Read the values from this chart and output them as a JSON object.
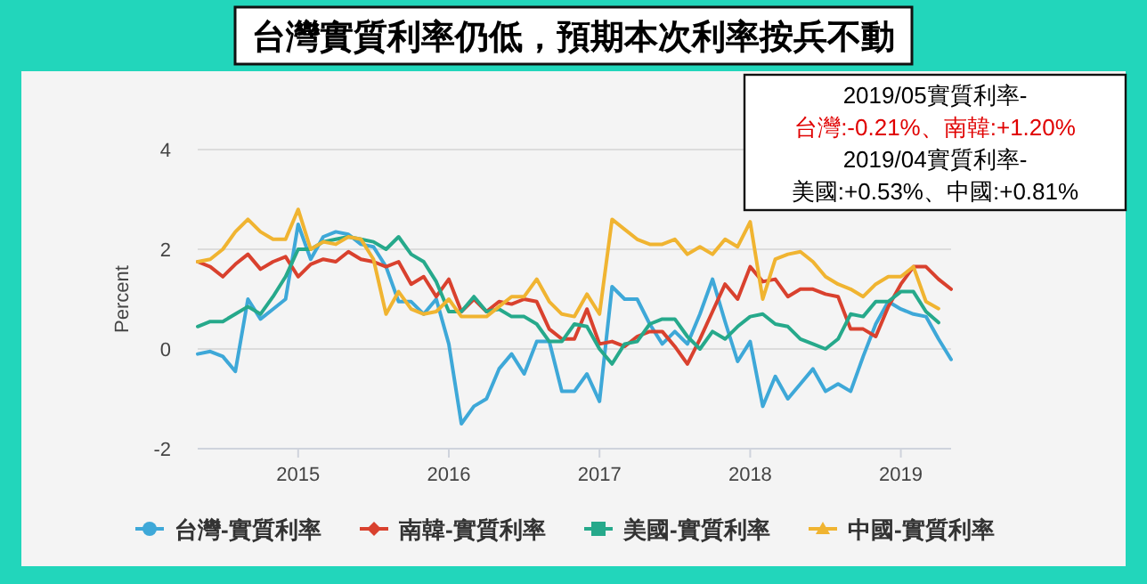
{
  "chart_data": {
    "type": "line",
    "title": "台灣實質利率仍低，預期本次利率按兵不動",
    "ylabel": "Percent",
    "annotations": [
      "2019/05實質利率-",
      "台灣:-0.21%、南韓:+1.20%",
      "2019/04實質利率-",
      "美國:+0.53%、中國:+0.81%"
    ],
    "x": [
      "2014-05",
      "2014-06",
      "2014-07",
      "2014-08",
      "2014-09",
      "2014-10",
      "2014-11",
      "2014-12",
      "2015-01",
      "2015-02",
      "2015-03",
      "2015-04",
      "2015-05",
      "2015-06",
      "2015-07",
      "2015-08",
      "2015-09",
      "2015-10",
      "2015-11",
      "2015-12",
      "2016-01",
      "2016-02",
      "2016-03",
      "2016-04",
      "2016-05",
      "2016-06",
      "2016-07",
      "2016-08",
      "2016-09",
      "2016-10",
      "2016-11",
      "2016-12",
      "2017-01",
      "2017-02",
      "2017-03",
      "2017-04",
      "2017-05",
      "2017-06",
      "2017-07",
      "2017-08",
      "2017-09",
      "2017-10",
      "2017-11",
      "2017-12",
      "2018-01",
      "2018-02",
      "2018-03",
      "2018-04",
      "2018-05",
      "2018-06",
      "2018-07",
      "2018-08",
      "2018-09",
      "2018-10",
      "2018-11",
      "2018-12",
      "2019-01",
      "2019-02",
      "2019-03",
      "2019-04",
      "2019-05"
    ],
    "series": [
      {
        "name": "台灣-實質利率",
        "color": "#3ea8d8",
        "values": [
          -0.1,
          -0.05,
          -0.15,
          -0.45,
          1.0,
          0.6,
          0.8,
          1.0,
          2.5,
          1.8,
          2.25,
          2.35,
          2.3,
          2.1,
          2.05,
          1.65,
          0.95,
          0.95,
          0.7,
          1.0,
          0.1,
          -1.5,
          -1.15,
          -1.0,
          -0.4,
          -0.1,
          -0.5,
          0.15,
          0.15,
          -0.85,
          -0.85,
          -0.5,
          -1.05,
          1.25,
          1.0,
          1.0,
          0.5,
          0.1,
          0.35,
          0.1,
          0.7,
          1.4,
          0.55,
          -0.25,
          0.15,
          -1.15,
          -0.55,
          -1.0,
          -0.7,
          -0.4,
          -0.85,
          -0.7,
          -0.85,
          -0.15,
          0.5,
          0.95,
          0.8,
          0.7,
          0.65,
          0.2,
          -0.21
        ]
      },
      {
        "name": "南韓-實質利率",
        "color": "#d9412e",
        "values": [
          1.75,
          1.65,
          1.45,
          1.7,
          1.9,
          1.6,
          1.75,
          1.85,
          1.45,
          1.7,
          1.8,
          1.75,
          1.95,
          1.8,
          1.75,
          1.65,
          1.75,
          1.3,
          1.45,
          1.05,
          1.4,
          0.75,
          1.0,
          0.75,
          0.95,
          0.9,
          1.0,
          0.95,
          0.4,
          0.2,
          0.2,
          0.8,
          0.1,
          0.15,
          0.05,
          0.25,
          0.35,
          0.35,
          0.05,
          -0.3,
          0.2,
          0.75,
          1.3,
          1.0,
          1.65,
          1.35,
          1.4,
          1.05,
          1.2,
          1.2,
          1.1,
          1.05,
          0.4,
          0.4,
          0.25,
          0.85,
          1.3,
          1.65,
          1.65,
          1.4,
          1.2
        ]
      },
      {
        "name": "美國-實質利率",
        "color": "#26a98b",
        "values": [
          0.45,
          0.55,
          0.55,
          0.7,
          0.85,
          0.7,
          1.05,
          1.45,
          2.0,
          2.0,
          2.15,
          2.2,
          2.25,
          2.2,
          2.15,
          2.0,
          2.25,
          1.9,
          1.75,
          1.35,
          0.75,
          0.75,
          1.05,
          0.75,
          0.8,
          0.65,
          0.65,
          0.5,
          0.15,
          0.15,
          0.5,
          0.45,
          0.0,
          -0.3,
          0.1,
          0.15,
          0.5,
          0.6,
          0.6,
          0.25,
          0.0,
          0.35,
          0.2,
          0.45,
          0.65,
          0.7,
          0.5,
          0.45,
          0.2,
          0.1,
          0.0,
          0.2,
          0.7,
          0.65,
          0.95,
          0.95,
          1.15,
          1.15,
          0.75,
          0.53,
          null
        ]
      },
      {
        "name": "中國-實質利率",
        "color": "#f0b431",
        "values": [
          1.75,
          1.8,
          2.0,
          2.35,
          2.6,
          2.35,
          2.2,
          2.2,
          2.8,
          2.0,
          2.15,
          2.1,
          2.25,
          2.2,
          1.8,
          0.7,
          1.15,
          0.8,
          0.7,
          0.75,
          1.0,
          0.65,
          0.65,
          0.65,
          0.85,
          1.05,
          1.05,
          1.4,
          0.95,
          0.7,
          0.65,
          1.1,
          0.7,
          2.6,
          2.4,
          2.2,
          2.1,
          2.1,
          2.2,
          1.9,
          2.05,
          1.9,
          2.2,
          2.05,
          2.55,
          1.0,
          1.8,
          1.9,
          1.95,
          1.75,
          1.45,
          1.3,
          1.2,
          1.05,
          1.3,
          1.45,
          1.45,
          1.65,
          0.95,
          0.81,
          null
        ]
      }
    ],
    "xlim": [
      "2014-05",
      "2019-05"
    ],
    "xticks": [
      "2015",
      "2016",
      "2017",
      "2018",
      "2019"
    ],
    "ylim": [
      -2,
      4
    ],
    "yticks": [
      -2,
      0,
      2,
      4
    ],
    "grid": "y",
    "legend": "bottom",
    "line_style": "solid"
  }
}
